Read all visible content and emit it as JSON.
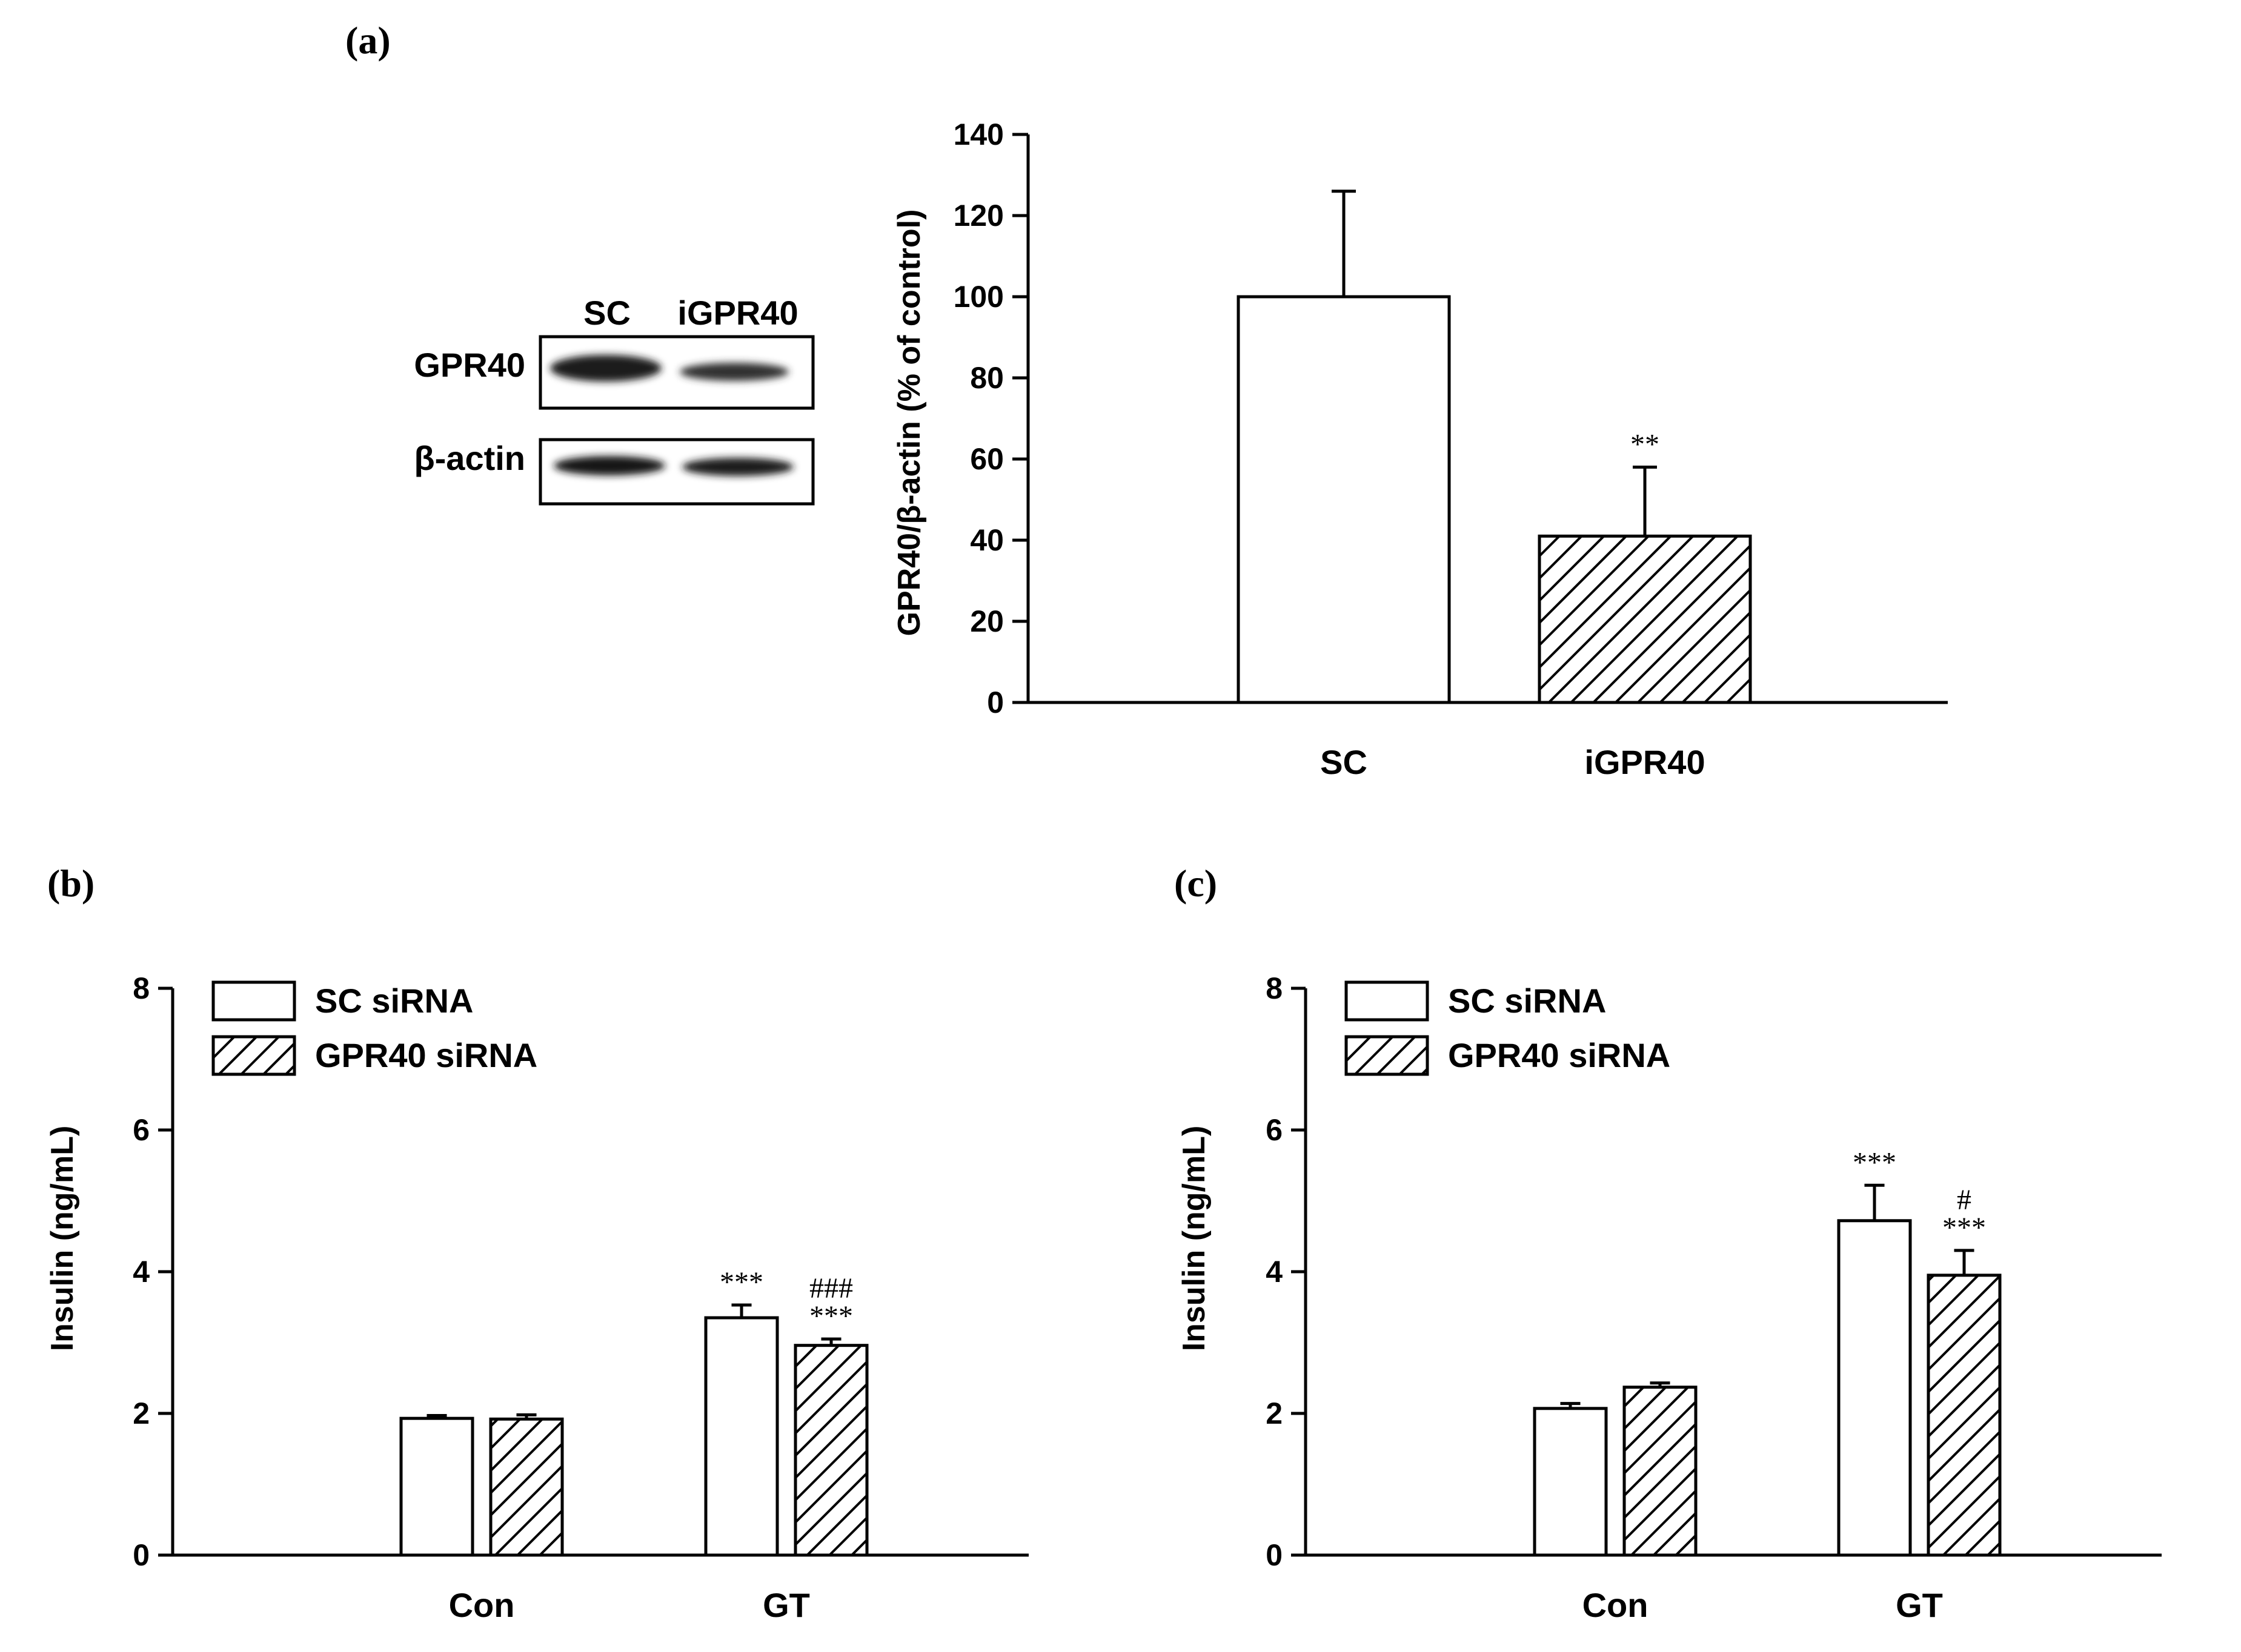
{
  "colors": {
    "ink": "#000000",
    "background": "#ffffff",
    "band": "#1a1a1a"
  },
  "blot": {
    "lanes": [
      "SC",
      "iGPR40"
    ],
    "rows": [
      "GPR40",
      "β-actin"
    ]
  },
  "chart_data": [
    {
      "id": "a",
      "panel_label": "(a)",
      "type": "bar",
      "categories": [
        "SC",
        "iGPR40"
      ],
      "series": [
        {
          "values": [
            100,
            41
          ],
          "errors": [
            26,
            17
          ],
          "patterns": [
            "plain",
            "hatch"
          ]
        }
      ],
      "significance": [
        [
          ""
        ],
        [
          "**"
        ]
      ],
      "ylabel": "GPR40/β-actin (% of control)",
      "xlabel": "",
      "ylim": [
        0,
        140
      ],
      "yticks": [
        0,
        20,
        40,
        60,
        80,
        100,
        120,
        140
      ],
      "legend": [],
      "grid": false
    },
    {
      "id": "b",
      "panel_label": "(b)",
      "type": "bar",
      "categories": [
        "Con",
        "GT"
      ],
      "series": [
        {
          "name": "SC siRNA",
          "pattern": "plain",
          "values": [
            1.93,
            3.35
          ],
          "errors": [
            0.04,
            0.18
          ]
        },
        {
          "name": "GPR40 siRNA",
          "pattern": "hatch",
          "values": [
            1.92,
            2.96
          ],
          "errors": [
            0.06,
            0.09
          ]
        }
      ],
      "significance": [
        [
          "",
          ""
        ],
        [
          "***",
          "###\n***"
        ]
      ],
      "ylabel": "Insulin (ng/mL)",
      "xlabel": "",
      "ylim": [
        0,
        8
      ],
      "yticks": [
        0,
        2,
        4,
        6,
        8
      ],
      "legend": [
        "SC siRNA",
        "GPR40 siRNA"
      ],
      "legend_position": "top-left",
      "grid": false
    },
    {
      "id": "c",
      "panel_label": "(c)",
      "type": "bar",
      "categories": [
        "Con",
        "GT"
      ],
      "series": [
        {
          "name": "SC siRNA",
          "pattern": "plain",
          "values": [
            2.07,
            4.72
          ],
          "errors": [
            0.07,
            0.5
          ]
        },
        {
          "name": "GPR40 siRNA",
          "pattern": "hatch",
          "values": [
            2.37,
            3.95
          ],
          "errors": [
            0.06,
            0.35
          ]
        }
      ],
      "significance": [
        [
          "",
          ""
        ],
        [
          "***",
          "#\n***"
        ]
      ],
      "ylabel": "Insulin (ng/mL)",
      "xlabel": "",
      "ylim": [
        0,
        8
      ],
      "yticks": [
        0,
        2,
        4,
        6,
        8
      ],
      "legend": [
        "SC siRNA",
        "GPR40 siRNA"
      ],
      "legend_position": "top-left",
      "grid": false
    }
  ]
}
